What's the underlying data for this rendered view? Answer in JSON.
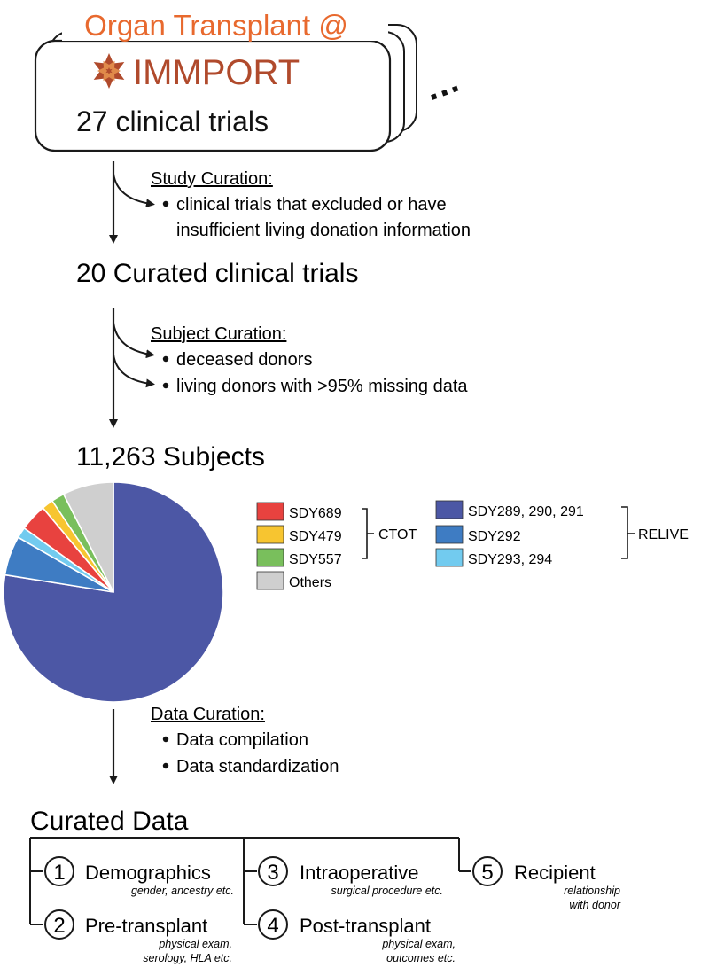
{
  "header": {
    "title": "Organ Transplant @",
    "logo_text": "IMMPORT",
    "trials_text": "27 clinical trials",
    "ellipsis": "…"
  },
  "study_curation": {
    "label": "Study Curation:",
    "bullets": [
      "clinical trials that excluded or have",
      "insufficient living donation information"
    ]
  },
  "curated_trials": "20 Curated clinical trials",
  "subject_curation": {
    "label": "Subject Curation:",
    "bullets": [
      "deceased donors",
      "living donors with >95% missing data"
    ]
  },
  "subjects_heading": "11,263 Subjects",
  "colors": {
    "orange": "#E8692E",
    "line": "#1a1a1a"
  },
  "chart_data": {
    "type": "pie",
    "title": "11,263 Subjects",
    "slices": [
      {
        "label": "SDY289, 290, 291",
        "value": 77.5,
        "color": "#4C57A5"
      },
      {
        "label": "SDY292",
        "value": 5.8,
        "color": "#3E7CC3"
      },
      {
        "label": "SDY293, 294",
        "value": 1.6,
        "color": "#72CBEF"
      },
      {
        "label": "SDY689",
        "value": 4.0,
        "color": "#E8423F"
      },
      {
        "label": "SDY479",
        "value": 1.7,
        "color": "#F7C530"
      },
      {
        "label": "SDY557",
        "value": 1.9,
        "color": "#79BF5C"
      },
      {
        "label": "Others",
        "value": 7.5,
        "color": "#CFCFCF"
      }
    ],
    "legend_groups": [
      {
        "name": "CTOT",
        "items": [
          "SDY689",
          "SDY479",
          "SDY557"
        ]
      },
      {
        "name": "RELIVE",
        "items": [
          "SDY289, 290, 291",
          "SDY292",
          "SDY293, 294"
        ]
      }
    ]
  },
  "data_curation": {
    "label": "Data Curation:",
    "bullets": [
      "Data compilation",
      "Data standardization"
    ]
  },
  "curated_data": {
    "title": "Curated Data",
    "categories": [
      {
        "num": "1",
        "name": "Demographics",
        "desc": [
          "gender, ancestry etc."
        ]
      },
      {
        "num": "2",
        "name": "Pre-transplant",
        "desc": [
          "physical exam,",
          "serology, HLA etc."
        ]
      },
      {
        "num": "3",
        "name": "Intraoperative",
        "desc": [
          "surgical procedure etc."
        ]
      },
      {
        "num": "4",
        "name": "Post-transplant",
        "desc": [
          "physical exam,",
          "outcomes etc."
        ]
      },
      {
        "num": "5",
        "name": "Recipient",
        "desc": [
          "relationship",
          "with donor"
        ]
      }
    ]
  }
}
